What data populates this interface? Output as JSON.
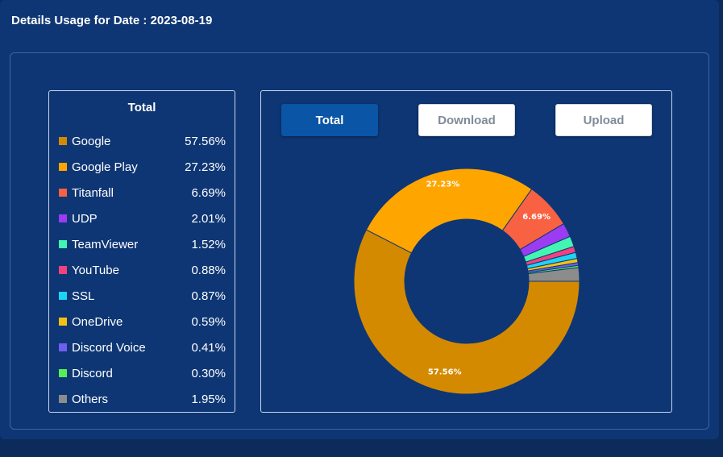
{
  "header": {
    "title": "Details Usage for Date : 2023-08-19"
  },
  "legend": {
    "title": "Total"
  },
  "tabs": [
    {
      "label": "Total",
      "active": true
    },
    {
      "label": "Download",
      "active": false
    },
    {
      "label": "Upload",
      "active": false
    }
  ],
  "chart_data": {
    "type": "pie",
    "variant": "donut",
    "categories": [
      "Google",
      "Google Play",
      "Titanfall",
      "UDP",
      "TeamViewer",
      "YouTube",
      "SSL",
      "OneDrive",
      "Discord Voice",
      "Discord",
      "Others"
    ],
    "values": [
      57.56,
      27.23,
      6.69,
      2.01,
      1.52,
      0.88,
      0.87,
      0.59,
      0.41,
      0.3,
      1.95
    ],
    "value_labels": [
      "57.56%",
      "27.23%",
      "6.69%",
      "2.01%",
      "1.52%",
      "0.88%",
      "0.87%",
      "0.59%",
      "0.41%",
      "0.30%",
      "1.95%"
    ],
    "colors": [
      "#d48a00",
      "#ffa500",
      "#f86141",
      "#9b3cf2",
      "#42f5b3",
      "#f2417f",
      "#1ed4f5",
      "#f5c211",
      "#6f5ff0",
      "#55ef55",
      "#8c8c8c"
    ],
    "slice_labels_shown": [
      "57.56%",
      "27.23%",
      "6.69%"
    ],
    "legend_position": "left"
  }
}
